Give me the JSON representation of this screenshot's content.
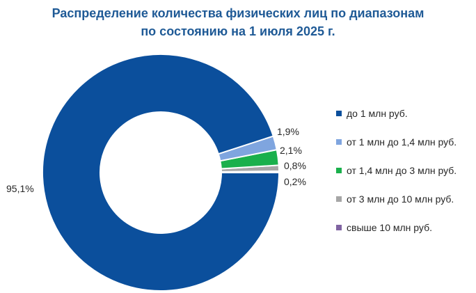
{
  "title": {
    "line1": "Распределение количества физических лиц по диапазонам",
    "line2": "по состоянию на 1 июля 2025 г."
  },
  "labels": {
    "l0": "95,1%",
    "l1": "1,9%",
    "l2": "2,1%",
    "l3": "0,8%",
    "l4": "0,2%"
  },
  "legend": [
    {
      "label": "до 1 млн руб.",
      "color": "#0b4f9c"
    },
    {
      "label": "от 1 млн до 1,4 млн руб.",
      "color": "#7fa5df"
    },
    {
      "label": "от 1,4 млн до 3 млн руб.",
      "color": "#1ab04c"
    },
    {
      "label": "от 3 млн до 10 млн руб.",
      "color": "#a6a6a6"
    },
    {
      "label": "свыше 10 млн руб.",
      "color": "#8064a2"
    }
  ],
  "chart_data": {
    "type": "pie",
    "subtype": "donut",
    "title": "Распределение количества физических лиц по диапазонам по состоянию на 1 июля 2025 г.",
    "categories": [
      "до 1 млн руб.",
      "от 1 млн до 1,4 млн руб.",
      "от 1,4 млн до 3 млн руб.",
      "от 3 млн до 10 млн руб.",
      "свыше 10 млн руб."
    ],
    "values": [
      95.1,
      1.9,
      2.1,
      0.8,
      0.2
    ],
    "value_labels": [
      "95,1%",
      "1,9%",
      "2,1%",
      "0,8%",
      "0,2%"
    ],
    "colors": [
      "#0b4f9c",
      "#7fa5df",
      "#1ab04c",
      "#a6a6a6",
      "#8064a2"
    ],
    "unit": "%",
    "legend_position": "right"
  }
}
